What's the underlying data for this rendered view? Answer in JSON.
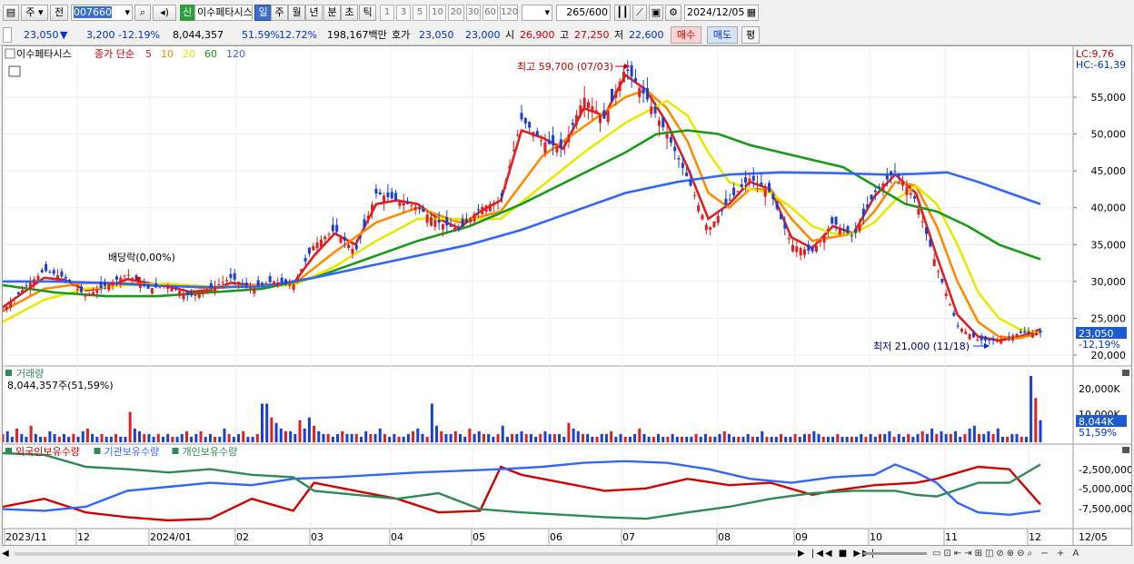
{
  "toolbar": {
    "market_btn": "주",
    "prev_btn": "전",
    "code": "007660",
    "badge": "신",
    "name": "이수페타시스",
    "periods": [
      "일",
      "주",
      "월",
      "년",
      "분",
      "초",
      "틱"
    ],
    "selected_period": "일",
    "nums": [
      "1",
      "3",
      "5",
      "10",
      "20",
      "30",
      "60",
      "120"
    ],
    "count_value": "265",
    "count_max": "/600",
    "date": "2024/12/05"
  },
  "quote": {
    "price": "23,050",
    "arrow": "▼",
    "change": "3,200",
    "change_pct": "-12.19%",
    "volume": "8,044,357",
    "vol_ratio": "51.59%",
    "turnover": "12.72%",
    "amount": "198,167백만",
    "hoga_label": "호가",
    "ask": "23,050",
    "bid": "23,000",
    "open_label": "시",
    "open": "26,900",
    "high_label": "고",
    "high": "27,250",
    "low_label": "저",
    "low": "22,600",
    "buy_btn": "매수",
    "sell_btn": "매도",
    "eval_btn": "평"
  },
  "legend": {
    "name": "이수페타시스",
    "ma_label": "종가 단순",
    "ma_periods": [
      {
        "label": "5",
        "color": "#e02020"
      },
      {
        "label": "10",
        "color": "#ff8c00"
      },
      {
        "label": "20",
        "color": "#e8e800"
      },
      {
        "label": "60",
        "color": "#1a9a1a"
      },
      {
        "label": "120",
        "color": "#3366ff"
      }
    ]
  },
  "annotations": {
    "high": "최고 59,700 (07/03)",
    "low": "최저 21,000 (11/18)",
    "dividend": "배당락(0,00%)",
    "lc": "LC:9,76",
    "hc": "HC:-61,39",
    "price_tag": "23,050",
    "pct_tag": "-12,19%",
    "vol_tag": "8,044K",
    "vol_pct": "51,59%"
  },
  "volume_panel": {
    "title": "거래량",
    "value": "8,044,357주(51,59%)",
    "ticks": [
      "20,000K",
      "10,000K"
    ]
  },
  "holdings_panel": {
    "labels": [
      {
        "text": "외국인보유수량",
        "color": "#d00000"
      },
      {
        "text": "기관보유수량",
        "color": "#3366ff"
      },
      {
        "text": "개인보유수량",
        "color": "#2e8b57"
      }
    ],
    "ticks": [
      "-2,500,000",
      "-5,000,000",
      "-7,500,000"
    ]
  },
  "xaxis": {
    "labels": [
      "2023/11",
      "12",
      "2024/01",
      "02",
      "03",
      "04",
      "05",
      "06",
      "07",
      "08",
      "09",
      "10",
      "11",
      "12",
      "12/05"
    ]
  },
  "chart_data": {
    "type": "candlestick",
    "ylim": [
      20000,
      60000
    ],
    "yticks": [
      20000,
      25000,
      30000,
      35000,
      40000,
      45000,
      50000,
      55000
    ],
    "ytick_labels": [
      "20,000",
      "25,000",
      "30,000",
      "35,000",
      "40,000",
      "45,000",
      "50,000",
      "55,000"
    ],
    "price_path": [
      [
        0,
        26000
      ],
      [
        0.02,
        29000
      ],
      [
        0.04,
        31500
      ],
      [
        0.06,
        30500
      ],
      [
        0.08,
        28000
      ],
      [
        0.1,
        29500
      ],
      [
        0.12,
        31000
      ],
      [
        0.14,
        29000
      ],
      [
        0.16,
        29500
      ],
      [
        0.18,
        28000
      ],
      [
        0.2,
        29000
      ],
      [
        0.22,
        30500
      ],
      [
        0.24,
        29000
      ],
      [
        0.26,
        30000
      ],
      [
        0.28,
        29500
      ],
      [
        0.3,
        35000
      ],
      [
        0.32,
        37000
      ],
      [
        0.34,
        34000
      ],
      [
        0.36,
        42000
      ],
      [
        0.38,
        41000
      ],
      [
        0.4,
        40000
      ],
      [
        0.42,
        38000
      ],
      [
        0.44,
        37000
      ],
      [
        0.46,
        40000
      ],
      [
        0.48,
        41000
      ],
      [
        0.5,
        52000
      ],
      [
        0.52,
        49000
      ],
      [
        0.54,
        48000
      ],
      [
        0.56,
        55000
      ],
      [
        0.58,
        52000
      ],
      [
        0.6,
        59000
      ],
      [
        0.62,
        55000
      ],
      [
        0.64,
        50000
      ],
      [
        0.66,
        44000
      ],
      [
        0.68,
        37000
      ],
      [
        0.7,
        41000
      ],
      [
        0.72,
        44000
      ],
      [
        0.74,
        42000
      ],
      [
        0.76,
        35000
      ],
      [
        0.78,
        34000
      ],
      [
        0.8,
        38000
      ],
      [
        0.82,
        36000
      ],
      [
        0.84,
        42000
      ],
      [
        0.86,
        45000
      ],
      [
        0.88,
        41000
      ],
      [
        0.9,
        32000
      ],
      [
        0.92,
        24000
      ],
      [
        0.94,
        22000
      ],
      [
        0.96,
        22000
      ],
      [
        0.98,
        23000
      ],
      [
        1,
        23050
      ]
    ],
    "ma_series": [
      {
        "name": "5",
        "color": "#e02020",
        "points": [
          [
            0,
            26500
          ],
          [
            0.02,
            28500
          ],
          [
            0.04,
            30500
          ],
          [
            0.06,
            30200
          ],
          [
            0.08,
            28800
          ],
          [
            0.1,
            29200
          ],
          [
            0.12,
            30300
          ],
          [
            0.14,
            29800
          ],
          [
            0.16,
            29300
          ],
          [
            0.18,
            28600
          ],
          [
            0.2,
            28800
          ],
          [
            0.22,
            29800
          ],
          [
            0.24,
            29500
          ],
          [
            0.26,
            29600
          ],
          [
            0.28,
            29700
          ],
          [
            0.3,
            33500
          ],
          [
            0.32,
            36500
          ],
          [
            0.34,
            35000
          ],
          [
            0.36,
            40500
          ],
          [
            0.38,
            41000
          ],
          [
            0.4,
            40500
          ],
          [
            0.42,
            38500
          ],
          [
            0.44,
            37200
          ],
          [
            0.46,
            39500
          ],
          [
            0.48,
            41000
          ],
          [
            0.5,
            50500
          ],
          [
            0.52,
            49500
          ],
          [
            0.54,
            48000
          ],
          [
            0.56,
            53500
          ],
          [
            0.58,
            52500
          ],
          [
            0.6,
            58000
          ],
          [
            0.62,
            56000
          ],
          [
            0.64,
            51500
          ],
          [
            0.66,
            45500
          ],
          [
            0.68,
            38500
          ],
          [
            0.7,
            40500
          ],
          [
            0.72,
            43500
          ],
          [
            0.74,
            42500
          ],
          [
            0.76,
            36000
          ],
          [
            0.78,
            34500
          ],
          [
            0.8,
            37500
          ],
          [
            0.82,
            36500
          ],
          [
            0.84,
            41500
          ],
          [
            0.86,
            44500
          ],
          [
            0.88,
            42000
          ],
          [
            0.9,
            33500
          ],
          [
            0.92,
            25500
          ],
          [
            0.94,
            22500
          ],
          [
            0.96,
            22000
          ],
          [
            0.98,
            22500
          ],
          [
            1,
            23500
          ]
        ]
      },
      {
        "name": "10",
        "color": "#ff8c00",
        "points": [
          [
            0,
            26000
          ],
          [
            0.04,
            29000
          ],
          [
            0.08,
            29800
          ],
          [
            0.12,
            29700
          ],
          [
            0.16,
            29600
          ],
          [
            0.2,
            29000
          ],
          [
            0.24,
            29500
          ],
          [
            0.28,
            29600
          ],
          [
            0.32,
            34000
          ],
          [
            0.36,
            38000
          ],
          [
            0.4,
            40000
          ],
          [
            0.44,
            38000
          ],
          [
            0.48,
            39500
          ],
          [
            0.52,
            47000
          ],
          [
            0.56,
            51000
          ],
          [
            0.6,
            55000
          ],
          [
            0.62,
            56000
          ],
          [
            0.64,
            53500
          ],
          [
            0.66,
            49000
          ],
          [
            0.68,
            42000
          ],
          [
            0.7,
            40000
          ],
          [
            0.72,
            42500
          ],
          [
            0.74,
            42500
          ],
          [
            0.76,
            38500
          ],
          [
            0.78,
            35500
          ],
          [
            0.8,
            36000
          ],
          [
            0.82,
            36500
          ],
          [
            0.84,
            39500
          ],
          [
            0.86,
            43500
          ],
          [
            0.88,
            43000
          ],
          [
            0.9,
            37500
          ],
          [
            0.92,
            30000
          ],
          [
            0.94,
            24500
          ],
          [
            0.96,
            22500
          ],
          [
            0.98,
            22300
          ],
          [
            1,
            23000
          ]
        ]
      },
      {
        "name": "20",
        "color": "#e8e800",
        "points": [
          [
            0,
            24500
          ],
          [
            0.04,
            27500
          ],
          [
            0.08,
            29000
          ],
          [
            0.12,
            29500
          ],
          [
            0.16,
            29700
          ],
          [
            0.2,
            29300
          ],
          [
            0.24,
            29300
          ],
          [
            0.28,
            29500
          ],
          [
            0.32,
            32000
          ],
          [
            0.36,
            35500
          ],
          [
            0.4,
            38500
          ],
          [
            0.44,
            38500
          ],
          [
            0.48,
            38500
          ],
          [
            0.52,
            43000
          ],
          [
            0.56,
            47500
          ],
          [
            0.6,
            51500
          ],
          [
            0.64,
            54500
          ],
          [
            0.66,
            52500
          ],
          [
            0.68,
            47500
          ],
          [
            0.7,
            43500
          ],
          [
            0.72,
            42500
          ],
          [
            0.74,
            42000
          ],
          [
            0.76,
            40000
          ],
          [
            0.78,
            37500
          ],
          [
            0.8,
            36500
          ],
          [
            0.82,
            36500
          ],
          [
            0.84,
            38000
          ],
          [
            0.86,
            41000
          ],
          [
            0.88,
            43000
          ],
          [
            0.9,
            40500
          ],
          [
            0.92,
            35000
          ],
          [
            0.94,
            28500
          ],
          [
            0.96,
            25000
          ],
          [
            0.98,
            23500
          ],
          [
            1,
            23000
          ]
        ]
      },
      {
        "name": "60",
        "color": "#1a9a1a",
        "points": [
          [
            0,
            29500
          ],
          [
            0.05,
            28500
          ],
          [
            0.1,
            28000
          ],
          [
            0.15,
            28000
          ],
          [
            0.2,
            28500
          ],
          [
            0.25,
            29000
          ],
          [
            0.3,
            30500
          ],
          [
            0.35,
            33000
          ],
          [
            0.4,
            35500
          ],
          [
            0.45,
            37500
          ],
          [
            0.5,
            40500
          ],
          [
            0.55,
            44000
          ],
          [
            0.6,
            47500
          ],
          [
            0.63,
            50000
          ],
          [
            0.66,
            50500
          ],
          [
            0.69,
            50000
          ],
          [
            0.72,
            48500
          ],
          [
            0.75,
            47500
          ],
          [
            0.78,
            46500
          ],
          [
            0.81,
            45500
          ],
          [
            0.84,
            43000
          ],
          [
            0.87,
            40500
          ],
          [
            0.9,
            39500
          ],
          [
            0.93,
            37500
          ],
          [
            0.96,
            35000
          ],
          [
            1,
            33000
          ]
        ]
      },
      {
        "name": "120",
        "color": "#3366ff",
        "points": [
          [
            0,
            30000
          ],
          [
            0.05,
            30000
          ],
          [
            0.1,
            29800
          ],
          [
            0.15,
            29400
          ],
          [
            0.2,
            29200
          ],
          [
            0.25,
            29300
          ],
          [
            0.3,
            30500
          ],
          [
            0.35,
            32000
          ],
          [
            0.4,
            33500
          ],
          [
            0.45,
            35000
          ],
          [
            0.5,
            37000
          ],
          [
            0.55,
            39500
          ],
          [
            0.6,
            42000
          ],
          [
            0.65,
            43500
          ],
          [
            0.7,
            44500
          ],
          [
            0.75,
            44800
          ],
          [
            0.8,
            44700
          ],
          [
            0.85,
            44500
          ],
          [
            0.88,
            44600
          ],
          [
            0.91,
            44800
          ],
          [
            0.94,
            43500
          ],
          [
            0.97,
            42000
          ],
          [
            1,
            40500
          ]
        ]
      }
    ],
    "volume_values": [
      3,
      4,
      2,
      5,
      3,
      2,
      6,
      3,
      2,
      2,
      4,
      3,
      2,
      3,
      2,
      3,
      2,
      4,
      5,
      3,
      2,
      3,
      2,
      2,
      3,
      2,
      2,
      11,
      5,
      4,
      3,
      3,
      2,
      3,
      2,
      3,
      2,
      2,
      3,
      4,
      2,
      3,
      4,
      2,
      3,
      2,
      2,
      5,
      3,
      2,
      3,
      4,
      2,
      2,
      3,
      14,
      14,
      9,
      7,
      5,
      4,
      4,
      3,
      8,
      5,
      9,
      6,
      4,
      3,
      3,
      2,
      3,
      4,
      3,
      3,
      3,
      2,
      4,
      3,
      3,
      5,
      3,
      2,
      3,
      2,
      2,
      3,
      4,
      5,
      3,
      2,
      14,
      6,
      4,
      3,
      3,
      4,
      3,
      2,
      5,
      3,
      4,
      3,
      3,
      2,
      3,
      6,
      2,
      3,
      3,
      4,
      3,
      3,
      2,
      3,
      4,
      3,
      3,
      3,
      2,
      7,
      5,
      4,
      3,
      3,
      2,
      2,
      3,
      3,
      4,
      2,
      3,
      2,
      2,
      3,
      5,
      3,
      2,
      2,
      3,
      2,
      2,
      3,
      2,
      2,
      2,
      2,
      3,
      2,
      3,
      2,
      2,
      3,
      4,
      3,
      2,
      2,
      2,
      3,
      2,
      2,
      4,
      2,
      2,
      2,
      3,
      2,
      2,
      3,
      2,
      3,
      3,
      4,
      3,
      2,
      2,
      2,
      3,
      2,
      2,
      2,
      2,
      3,
      2,
      3,
      2,
      3,
      3,
      4,
      2,
      3,
      2,
      3,
      2,
      3,
      4,
      3,
      5,
      3,
      4,
      3,
      3,
      4,
      2,
      3,
      5,
      6,
      3,
      3,
      4,
      3,
      5,
      2,
      2,
      3,
      3,
      2,
      2,
      24,
      16,
      8
    ]
  }
}
